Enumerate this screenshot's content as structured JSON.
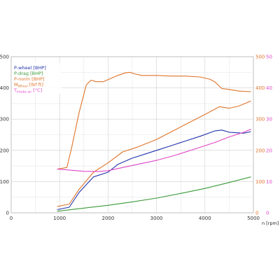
{
  "chart_data": {
    "type": "line",
    "title": "",
    "xlabel": "n [rpm]",
    "xlim": [
      0,
      5000
    ],
    "x_ticks": [
      "0",
      "1000",
      "2000",
      "3000",
      "4000",
      "5000"
    ],
    "y_left": {
      "ylim": [
        0,
        500
      ],
      "ticks": [
        "0",
        "100",
        "200",
        "300",
        "400",
        "500"
      ],
      "color": "#333333"
    },
    "y_right_1": {
      "ylim": [
        0,
        500
      ],
      "ticks": [
        "0",
        "100",
        "200",
        "300",
        "400",
        "500"
      ],
      "color": "#e0742a"
    },
    "y_right_2": {
      "ylim": [
        0,
        50
      ],
      "ticks": [
        "0",
        "10",
        "20",
        "30",
        "40",
        "50"
      ],
      "color": "#e046c8"
    },
    "grid": true,
    "legend_position": "top-left",
    "series": [
      {
        "name": "P-wheel [BHP]",
        "color": "#2233aa",
        "axis": "left",
        "x": [
          950,
          1200,
          1400,
          1700,
          2000,
          2200,
          2500,
          2800,
          3000,
          3300,
          3600,
          3900,
          4200,
          4350,
          4500,
          4800,
          4950
        ],
        "y": [
          10,
          18,
          65,
          115,
          130,
          155,
          175,
          190,
          200,
          215,
          230,
          245,
          262,
          265,
          258,
          255,
          260
        ]
      },
      {
        "name": "P-drag [BHP]",
        "color": "#3a9a3a",
        "axis": "left",
        "x": [
          950,
          1500,
          2000,
          2500,
          3000,
          3500,
          4000,
          4500,
          4950
        ],
        "y": [
          5,
          15,
          24,
          35,
          47,
          62,
          78,
          97,
          115
        ]
      },
      {
        "name": "P-norm [BHP]",
        "color": "#e0742a",
        "axis": "right_1",
        "x": [
          950,
          1200,
          1400,
          1700,
          2000,
          2300,
          2600,
          3000,
          3500,
          4000,
          4300,
          4500,
          4700,
          4950
        ],
        "y": [
          20,
          28,
          75,
          130,
          160,
          195,
          210,
          235,
          275,
          315,
          340,
          335,
          342,
          358
        ]
      },
      {
        "name": "M_Wheel [lbf ft]",
        "legend_main": "M",
        "legend_sub": "Wheel",
        "legend_suffix": " [lbf ft]",
        "color": "#e0742a",
        "axis": "right_1",
        "x": [
          950,
          1150,
          1250,
          1400,
          1550,
          1650,
          1750,
          1900,
          2050,
          2200,
          2350,
          2450,
          2550,
          2700,
          3000,
          3300,
          3600,
          3900,
          4100,
          4200,
          4350,
          4500,
          4700,
          4950
        ],
        "y": [
          140,
          145,
          210,
          320,
          410,
          425,
          420,
          420,
          430,
          440,
          448,
          450,
          445,
          440,
          440,
          438,
          438,
          435,
          428,
          420,
          398,
          395,
          390,
          388
        ]
      },
      {
        "name": "T_Intake air [°C]",
        "legend_main": "T",
        "legend_sub": "Intake air",
        "legend_suffix": " [°C]",
        "color": "#e046c8",
        "axis": "right_2",
        "x": [
          950,
          1200,
          1500,
          1800,
          2000,
          2300,
          2600,
          3000,
          3400,
          3800,
          4200,
          4500,
          4800,
          4950
        ],
        "y": [
          14,
          13.7,
          13.3,
          13.2,
          13.5,
          14.5,
          15.5,
          16.8,
          18.5,
          20.5,
          22.5,
          24.3,
          25.8,
          26.8
        ]
      }
    ]
  }
}
